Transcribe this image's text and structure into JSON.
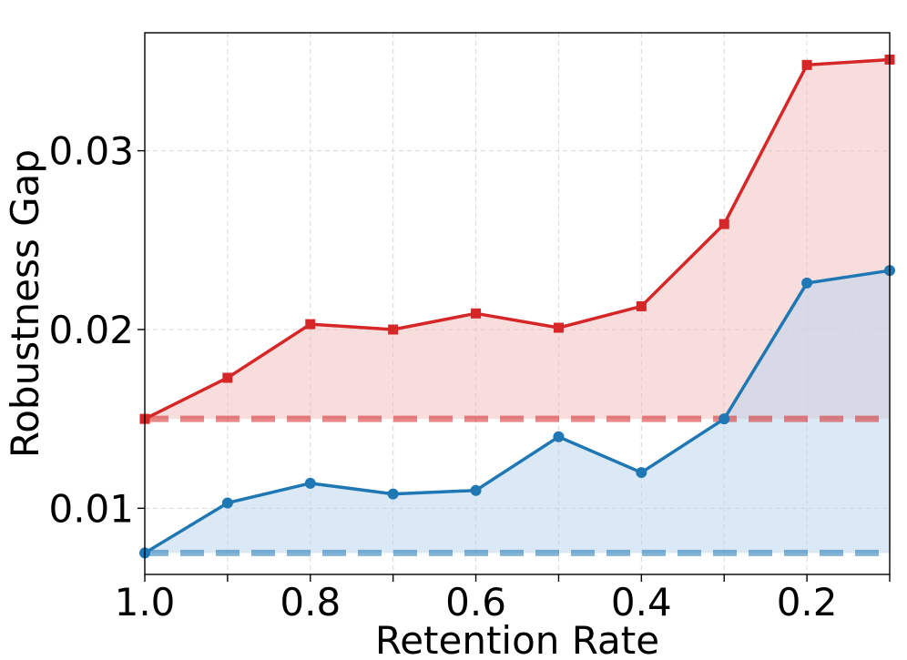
{
  "chart_data": {
    "type": "line",
    "title": "",
    "xlabel": "Retention Rate",
    "ylabel": "Robustness Gap",
    "x": [
      1.0,
      0.9,
      0.8,
      0.7,
      0.6,
      0.5,
      0.4,
      0.3,
      0.2,
      0.1
    ],
    "xlim": [
      1.0,
      0.1
    ],
    "x_reversed": true,
    "ylim": [
      0.0063,
      0.0366
    ],
    "x_ticks": [
      1.0,
      0.8,
      0.6,
      0.4,
      0.2
    ],
    "x_tick_labels": [
      "1.0",
      "0.8",
      "0.6",
      "0.4",
      "0.2"
    ],
    "y_ticks": [
      0.01,
      0.02,
      0.03
    ],
    "y_tick_labels": [
      "0.01",
      "0.02",
      "0.03"
    ],
    "grid": true,
    "legend": "none",
    "series": [
      {
        "values": [
          0.015,
          0.0173,
          0.0203,
          0.02,
          0.0209,
          0.0201,
          0.0213,
          0.0259,
          0.0348,
          0.0351
        ],
        "baseline": 0.015,
        "color": "#d62728",
        "marker": "square",
        "fill": "#f2c1c1"
      },
      {
        "values": [
          0.0075,
          0.0103,
          0.0114,
          0.0108,
          0.011,
          0.014,
          0.012,
          0.015,
          0.0226,
          0.0233
        ],
        "baseline": 0.0075,
        "color": "#1f77b4",
        "marker": "circle",
        "fill": "#bdd6ec"
      }
    ]
  }
}
